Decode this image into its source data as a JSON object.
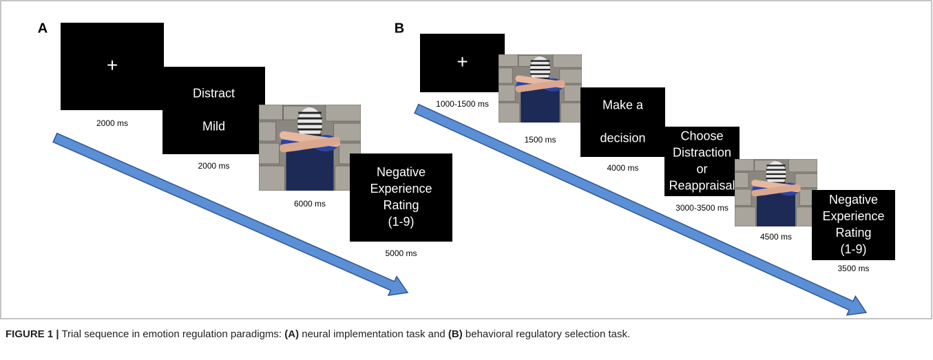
{
  "panels": [
    {
      "label": "A",
      "screens": [
        {
          "lines": [
            "+"
          ],
          "duration": "2000 ms"
        },
        {
          "lines": [
            "Distract",
            "Mild"
          ],
          "duration": "2000 ms"
        },
        {
          "duration": "6000 ms"
        },
        {
          "lines": [
            "Negative",
            "Experience",
            "Rating",
            "(1-9)"
          ],
          "duration": "5000 ms"
        }
      ]
    },
    {
      "label": "B",
      "screens": [
        {
          "lines": [
            "+"
          ],
          "duration": "1000-1500 ms"
        },
        {
          "duration": "1500 ms"
        },
        {
          "lines": [
            "Make a",
            "decision"
          ],
          "duration": "4000 ms"
        },
        {
          "lines": [
            "Choose",
            "Distraction",
            "or",
            "Reappraisal"
          ],
          "duration": "3000-3500 ms"
        },
        {
          "duration": "4500 ms"
        },
        {
          "lines": [
            "Negative",
            "Experience",
            "Rating",
            "(1-9)"
          ],
          "duration": "3500 ms"
        }
      ]
    }
  ],
  "caption": {
    "label": "FIGURE 1 |",
    "parts": [
      "Trial sequence in emotion regulation paradigms:",
      "(A)",
      "neural implementation task and",
      "(B)",
      "behavioral regulatory selection task."
    ]
  }
}
